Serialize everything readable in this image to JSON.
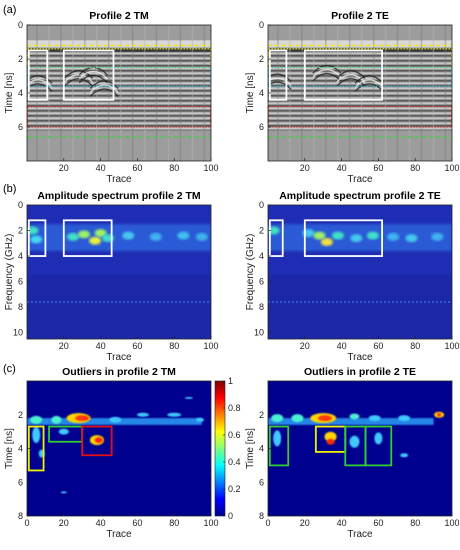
{
  "figure": {
    "row_labels": [
      "(a)",
      "(b)",
      "(c)"
    ]
  },
  "colors": {
    "yellow": "#f2e600",
    "cyan": "#27c6e6",
    "red": "#e21b1b",
    "green_line": "#3fcf3f",
    "white_box": "#ffffff",
    "green_box": "#33cc33",
    "yellow_box": "#f2f200",
    "red_box": "#e01010"
  },
  "chart_data": [
    {
      "id": "a_tm",
      "type": "heatmap",
      "title": "Profile 2 TM",
      "xlabel": "Trace",
      "ylabel": "Time [ns]",
      "xlim": [
        0,
        100
      ],
      "ylim": [
        8,
        0
      ],
      "xticks": [
        "20",
        "40",
        "60",
        "80",
        "100"
      ],
      "yticks": [
        "0",
        "2",
        "4",
        "6"
      ],
      "colormap": "gray",
      "boxes": [
        {
          "x0": 1,
          "x1": 11,
          "y0": 1.5,
          "y1": 4.4,
          "color": "white"
        },
        {
          "x0": 20,
          "x1": 47,
          "y0": 1.5,
          "y1": 4.4,
          "color": "white"
        }
      ],
      "hlines": [
        {
          "y": 1.2,
          "color": "yellow",
          "style": "dashed"
        },
        {
          "y": 6.6,
          "color": "green_line",
          "style": "dashed"
        }
      ],
      "bands": [
        {
          "y0": 1.4,
          "y1": 2.5,
          "color": "yellow"
        },
        {
          "y0": 2.5,
          "y1": 3.6,
          "color": "cyan"
        },
        {
          "y0": 4.8,
          "y1": 6.0,
          "color": "red"
        }
      ]
    },
    {
      "id": "a_te",
      "type": "heatmap",
      "title": "Profile 2 TE",
      "xlabel": "Trace",
      "ylabel": "Time [ns]",
      "xlim": [
        0,
        100
      ],
      "ylim": [
        8,
        0
      ],
      "xticks": [
        "20",
        "40",
        "60",
        "80",
        "100"
      ],
      "yticks": [
        "0",
        "2",
        "4",
        "6"
      ],
      "colormap": "gray",
      "boxes": [
        {
          "x0": 1,
          "x1": 10,
          "y0": 1.5,
          "y1": 4.4,
          "color": "white"
        },
        {
          "x0": 20,
          "x1": 62,
          "y0": 1.5,
          "y1": 4.4,
          "color": "white"
        }
      ],
      "hlines": [
        {
          "y": 1.2,
          "color": "yellow",
          "style": "dashed"
        },
        {
          "y": 6.6,
          "color": "green_line",
          "style": "dashed"
        }
      ],
      "bands": [
        {
          "y0": 1.4,
          "y1": 2.5,
          "color": "yellow"
        },
        {
          "y0": 2.5,
          "y1": 3.6,
          "color": "cyan"
        },
        {
          "y0": 4.8,
          "y1": 6.0,
          "color": "red"
        }
      ]
    },
    {
      "id": "b_tm",
      "type": "heatmap",
      "title": "Amplitude spectrum profile 2 TM",
      "xlabel": "Trace",
      "ylabel": "Frequency (GHz)",
      "xlim": [
        0,
        100
      ],
      "ylim": [
        10.5,
        0
      ],
      "xticks": [
        "20",
        "40",
        "60",
        "80",
        "100"
      ],
      "yticks": [
        "0",
        "2",
        "4",
        "6",
        "8",
        "10"
      ],
      "colormap": "jet",
      "boxes": [
        {
          "x0": 1,
          "x1": 10,
          "y0": 1.2,
          "y1": 4.0,
          "color": "white"
        },
        {
          "x0": 20,
          "x1": 46,
          "y0": 1.2,
          "y1": 4.0,
          "color": "white"
        }
      ],
      "bands": []
    },
    {
      "id": "b_te",
      "type": "heatmap",
      "title": "Amplitude spectrum profile 2 TE",
      "xlabel": "Trace",
      "ylabel": "Frequency (GHz)",
      "xlim": [
        0,
        100
      ],
      "ylim": [
        10.5,
        0
      ],
      "xticks": [
        "20",
        "40",
        "60",
        "80",
        "100"
      ],
      "yticks": [
        "0",
        "2",
        "4",
        "6",
        "8",
        "10"
      ],
      "colormap": "jet",
      "boxes": [
        {
          "x0": 1,
          "x1": 8,
          "y0": 1.2,
          "y1": 4.0,
          "color": "white"
        },
        {
          "x0": 20,
          "x1": 62,
          "y0": 1.2,
          "y1": 4.0,
          "color": "white"
        }
      ],
      "bands": []
    },
    {
      "id": "c_tm",
      "type": "heatmap",
      "title": "Outliers in profile 2 TM",
      "xlabel": "Trace",
      "ylabel": "Time [ns]",
      "xlim": [
        0,
        100
      ],
      "ylim": [
        8,
        0
      ],
      "xticks": [
        "0",
        "20",
        "40",
        "60",
        "80",
        "100"
      ],
      "yticks": [
        "2",
        "4",
        "6",
        "8"
      ],
      "colormap": "jet",
      "colorbar": {
        "ticks": [
          "0",
          "0.2",
          "0.4",
          "0.6",
          "0.8",
          "1"
        ],
        "range": [
          0,
          1
        ]
      },
      "boxes": [
        {
          "x0": 1,
          "x1": 9,
          "y0": 2.7,
          "y1": 5.3,
          "color": "yellow"
        },
        {
          "x0": 12,
          "x1": 30,
          "y0": 2.7,
          "y1": 3.6,
          "color": "green"
        },
        {
          "x0": 30,
          "x1": 46,
          "y0": 2.7,
          "y1": 4.4,
          "color": "red"
        }
      ],
      "bands": []
    },
    {
      "id": "c_te",
      "type": "heatmap",
      "title": "Outliers in profile 2 TE",
      "xlabel": "Trace",
      "ylabel": "Time [ns]",
      "xlim": [
        0,
        100
      ],
      "ylim": [
        8,
        0
      ],
      "xticks": [
        "0",
        "20",
        "40",
        "60",
        "80",
        "100"
      ],
      "yticks": [
        "2",
        "4",
        "6",
        "8"
      ],
      "colormap": "jet",
      "boxes": [
        {
          "x0": 1,
          "x1": 11,
          "y0": 2.7,
          "y1": 5.0,
          "color": "green"
        },
        {
          "x0": 26,
          "x1": 42,
          "y0": 2.7,
          "y1": 4.2,
          "color": "yellow"
        },
        {
          "x0": 42,
          "x1": 53,
          "y0": 2.7,
          "y1": 5.0,
          "color": "green"
        },
        {
          "x0": 53,
          "x1": 67,
          "y0": 2.7,
          "y1": 5.0,
          "color": "green"
        }
      ],
      "bands": []
    }
  ]
}
